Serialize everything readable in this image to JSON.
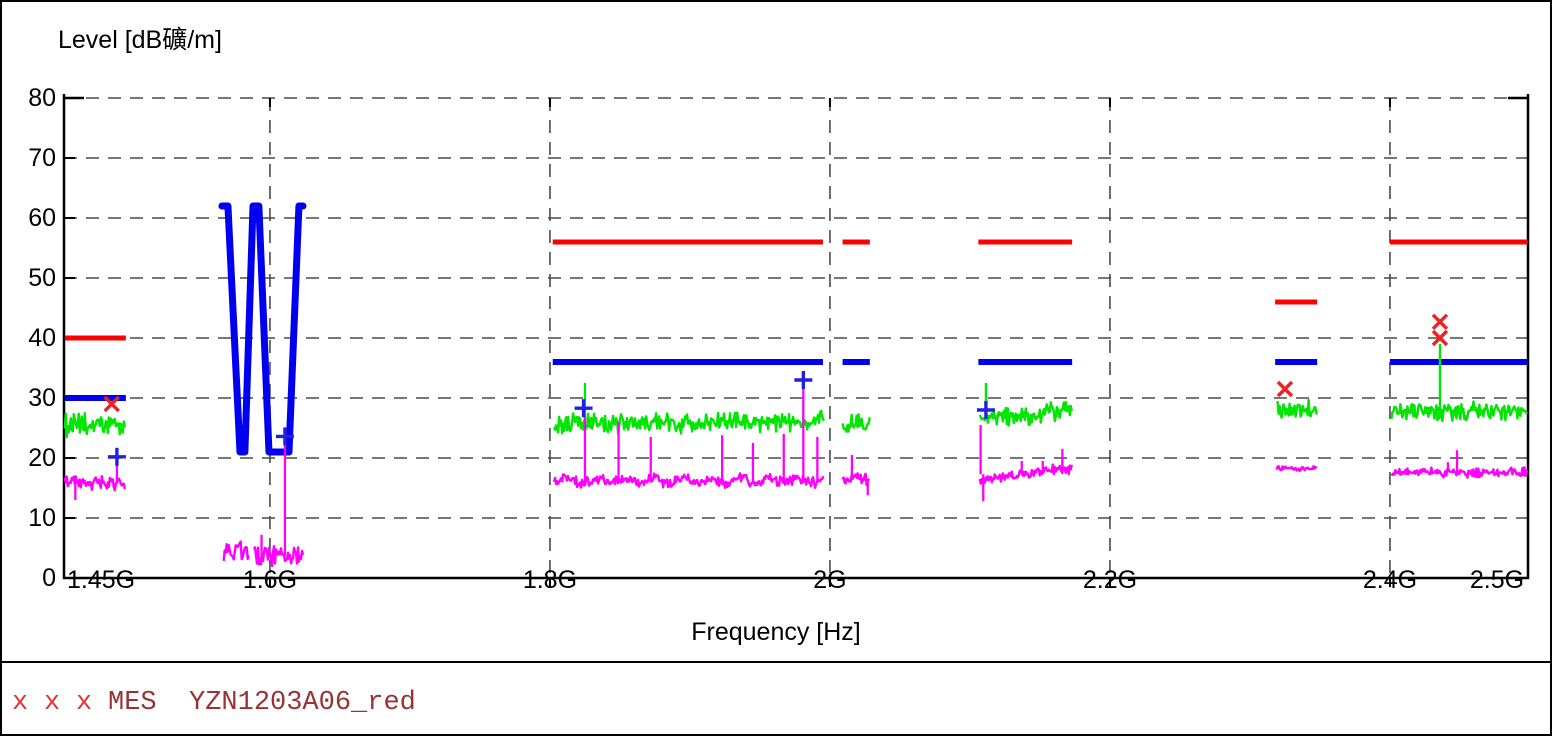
{
  "chart_data": {
    "type": "line",
    "title": "Level [dB礦/m]",
    "xlabel": "Frequency [Hz]",
    "x_unit": "GHz",
    "x_range": [
      1.4529,
      2.4986
    ],
    "ylim": [
      0,
      80
    ],
    "grid": "dashed",
    "y_ticks": [
      0,
      10,
      20,
      30,
      40,
      50,
      60,
      70,
      80
    ],
    "x_ticks": [
      {
        "f": 1.4529,
        "label": "1.45G"
      },
      {
        "f": 1.6,
        "label": "1.6G"
      },
      {
        "f": 1.8,
        "label": "1.8G"
      },
      {
        "f": 2.0,
        "label": "2G"
      },
      {
        "f": 2.2,
        "label": "2.2G"
      },
      {
        "f": 2.4,
        "label": "2.4G"
      },
      {
        "f": 2.4986,
        "label": "2.5G"
      }
    ],
    "x_gridlines": [
      1.6,
      1.8,
      2.0,
      2.2,
      2.4
    ],
    "series": [
      {
        "name": "red-limit",
        "color": "#ff0000",
        "width": 5,
        "segments": [
          [
            1.4535,
            1.4971,
            40
          ],
          [
            1.802,
            1.995,
            56
          ],
          [
            2.009,
            2.0285,
            56
          ],
          [
            2.106,
            2.173,
            56
          ],
          [
            2.318,
            2.348,
            46
          ],
          [
            2.4,
            2.4984,
            56
          ]
        ]
      },
      {
        "name": "blue-limit",
        "color": "#0000ee",
        "width": 6,
        "segments": [
          [
            1.4535,
            1.4971,
            30
          ],
          [
            1.802,
            1.995,
            36
          ],
          [
            2.009,
            2.0285,
            36
          ],
          [
            2.106,
            2.173,
            36
          ],
          [
            2.318,
            2.348,
            36
          ],
          [
            2.4,
            2.4984,
            36
          ]
        ],
        "notch": [
          [
            1.5657,
            62
          ],
          [
            1.57,
            62
          ],
          [
            1.5786,
            21
          ],
          [
            1.5821,
            21
          ],
          [
            1.5879,
            62
          ],
          [
            1.5921,
            62
          ],
          [
            1.5993,
            21
          ],
          [
            1.6136,
            21
          ],
          [
            1.6207,
            62
          ],
          [
            1.6236,
            62
          ]
        ]
      },
      {
        "name": "green-trace",
        "color": "#00e600",
        "width": 2.4,
        "bands": [
          {
            "f1": 1.4535,
            "f2": 1.497,
            "mean": 25.4,
            "amp": 1.7,
            "slope": 0,
            "spikes": []
          },
          {
            "f1": 1.803,
            "f2": 1.996,
            "mean": 25.9,
            "amp": 1.5,
            "slope": 0.5,
            "spikes": [
              [
                1.825,
                32.5
              ],
              [
                1.981,
                29.5
              ]
            ]
          },
          {
            "f1": 2.009,
            "f2": 2.0285,
            "mean": 25.6,
            "amp": 1.5,
            "slope": 0,
            "spikes": []
          },
          {
            "f1": 2.107,
            "f2": 2.173,
            "mean": 27.2,
            "amp": 1.4,
            "slope": 1.8,
            "spikes": [
              [
                2.1114,
                32.5
              ]
            ]
          },
          {
            "f1": 2.319,
            "f2": 2.348,
            "mean": 28.2,
            "amp": 1.2,
            "slope": 0,
            "spikes": []
          },
          {
            "f1": 2.401,
            "f2": 2.4983,
            "mean": 27.8,
            "amp": 1.4,
            "slope": 0,
            "spikes": [
              [
                2.4357,
                39
              ]
            ]
          }
        ]
      },
      {
        "name": "magenta-trace",
        "color": "#ff00ff",
        "width": 2.4,
        "bands": [
          {
            "f1": 1.4535,
            "f2": 1.497,
            "mean": 15.9,
            "amp": 1.0,
            "slope": -0.5,
            "spikes": [
              [
                1.4907,
                19.6
              ]
            ],
            "downspikes": [
              [
                1.461,
                13.0
              ]
            ]
          },
          {
            "f1": 1.567,
            "f2": 1.585,
            "mean": 4.3,
            "amp": 1.5,
            "slope": 0,
            "spikes": []
          },
          {
            "f1": 1.5886,
            "f2": 1.6236,
            "mean": 3.7,
            "amp": 1.5,
            "slope": 0,
            "spikes": [
              [
                1.594,
                7.2
              ],
              [
                1.6107,
                22.8
              ]
            ]
          },
          {
            "f1": 1.803,
            "f2": 1.996,
            "mean": 15.9,
            "amp": 0.8,
            "slope": 0,
            "wave": {
              "amp": 0.9,
              "period": 0.0205
            },
            "spikes": [
              [
                1.825,
                27.0
              ],
              [
                1.849,
                26.0
              ],
              [
                1.872,
                23.5
              ],
              [
                1.923,
                23.8
              ],
              [
                1.945,
                22.5
              ],
              [
                1.967,
                24.0
              ],
              [
                1.981,
                31.8
              ],
              [
                1.991,
                23.5
              ]
            ]
          },
          {
            "f1": 2.009,
            "f2": 2.0285,
            "mean": 16.4,
            "amp": 0.8,
            "slope": 0,
            "spikes": [
              [
                2.0157,
                20.5
              ]
            ],
            "downspikes": [
              [
                2.027,
                13.8
              ]
            ]
          },
          {
            "f1": 2.107,
            "f2": 2.173,
            "mean": 17.3,
            "amp": 0.8,
            "slope": 2.0,
            "spikes": [
              [
                2.1076,
                25.5
              ],
              [
                2.137,
                19.5
              ],
              [
                2.152,
                19.5
              ],
              [
                2.166,
                21.5
              ]
            ],
            "downspikes": [
              [
                2.1095,
                12.8
              ]
            ]
          },
          {
            "f1": 2.319,
            "f2": 2.348,
            "mean": 18.3,
            "amp": 0.5,
            "slope": 0,
            "spikes": []
          },
          {
            "f1": 2.401,
            "f2": 2.4983,
            "mean": 17.6,
            "amp": 0.7,
            "slope": 0,
            "spikes": [
              [
                2.4414,
                19.3
              ],
              [
                2.4479,
                21.3
              ]
            ]
          }
        ]
      }
    ],
    "markers": {
      "mes_x": {
        "symbol": "x",
        "color": "#ee2222",
        "points": [
          [
            1.487,
            29.0
          ],
          [
            2.325,
            31.5
          ],
          [
            2.4357,
            42.7
          ],
          [
            2.4357,
            40.0
          ]
        ]
      },
      "plus": {
        "symbol": "+",
        "color": "#2222dd",
        "points": [
          [
            1.4907,
            20.2
          ],
          [
            1.6107,
            23.6
          ],
          [
            1.824,
            28.3
          ],
          [
            1.981,
            33.0
          ],
          [
            2.1114,
            28.0
          ]
        ]
      }
    },
    "legend_position": "bottom"
  },
  "legend": {
    "symbols": [
      "x",
      "x",
      "x"
    ],
    "text": "MES  YZN1203A06_red",
    "symbol_color": "#e23434",
    "text_color": "#993333"
  },
  "colors": {
    "background": "#ffffff",
    "border": "#000000",
    "grid": "#4a4a4a",
    "red_limit": "#ff0000",
    "blue_limit": "#0000ee",
    "green_trace": "#00e600",
    "magenta_trace": "#ff00ff"
  }
}
